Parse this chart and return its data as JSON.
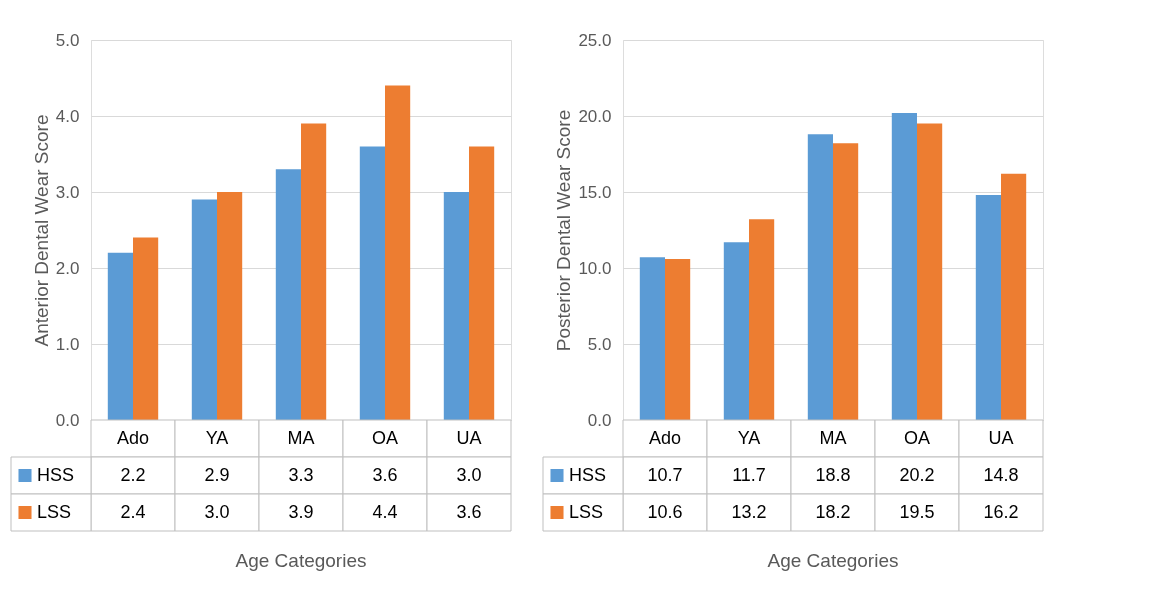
{
  "chart_data": [
    {
      "type": "bar",
      "ylabel": "Anterior Dental Wear Score",
      "xlabel": "Age Categories",
      "categories": [
        "Ado",
        "YA",
        "MA",
        "OA",
        "UA"
      ],
      "series": [
        {
          "name": "HSS",
          "color": "#5b9bd5",
          "values": [
            2.2,
            2.9,
            3.3,
            3.6,
            3.0
          ],
          "value_labels": [
            "2.2",
            "2.9",
            "3.3",
            "3.6",
            "3.0"
          ]
        },
        {
          "name": "LSS",
          "color": "#ed7d31",
          "values": [
            2.4,
            3.0,
            3.9,
            4.4,
            3.6
          ],
          "value_labels": [
            "2.4",
            "3.0",
            "3.9",
            "4.4",
            "3.6"
          ]
        }
      ],
      "ylim": [
        0,
        5
      ],
      "yticks": [
        {
          "value": 0,
          "label": "0.0"
        },
        {
          "value": 1,
          "label": "1.0"
        },
        {
          "value": 2,
          "label": "2.0"
        },
        {
          "value": 3,
          "label": "3.0"
        },
        {
          "value": 4,
          "label": "4.0"
        },
        {
          "value": 5,
          "label": "5.0"
        }
      ],
      "grid": "y",
      "legend": "bottom"
    },
    {
      "type": "bar",
      "ylabel": "Posterior Dental Wear Score",
      "xlabel": "Age Categories",
      "categories": [
        "Ado",
        "YA",
        "MA",
        "OA",
        "UA"
      ],
      "series": [
        {
          "name": "HSS",
          "color": "#5b9bd5",
          "values": [
            10.7,
            11.7,
            18.8,
            20.2,
            14.8
          ],
          "value_labels": [
            "10.7",
            "11.7",
            "18.8",
            "20.2",
            "14.8"
          ]
        },
        {
          "name": "LSS",
          "color": "#ed7d31",
          "values": [
            10.6,
            13.2,
            18.2,
            19.5,
            16.2
          ],
          "value_labels": [
            "10.6",
            "13.2",
            "18.2",
            "19.5",
            "16.2"
          ]
        }
      ],
      "ylim": [
        0,
        25
      ],
      "yticks": [
        {
          "value": 0,
          "label": "0.0"
        },
        {
          "value": 5,
          "label": "5.0"
        },
        {
          "value": 10,
          "label": "10.0"
        },
        {
          "value": 15,
          "label": "15.0"
        },
        {
          "value": 20,
          "label": "20.0"
        },
        {
          "value": 25,
          "label": "25.0"
        }
      ],
      "grid": "y",
      "legend": "bottom"
    }
  ]
}
